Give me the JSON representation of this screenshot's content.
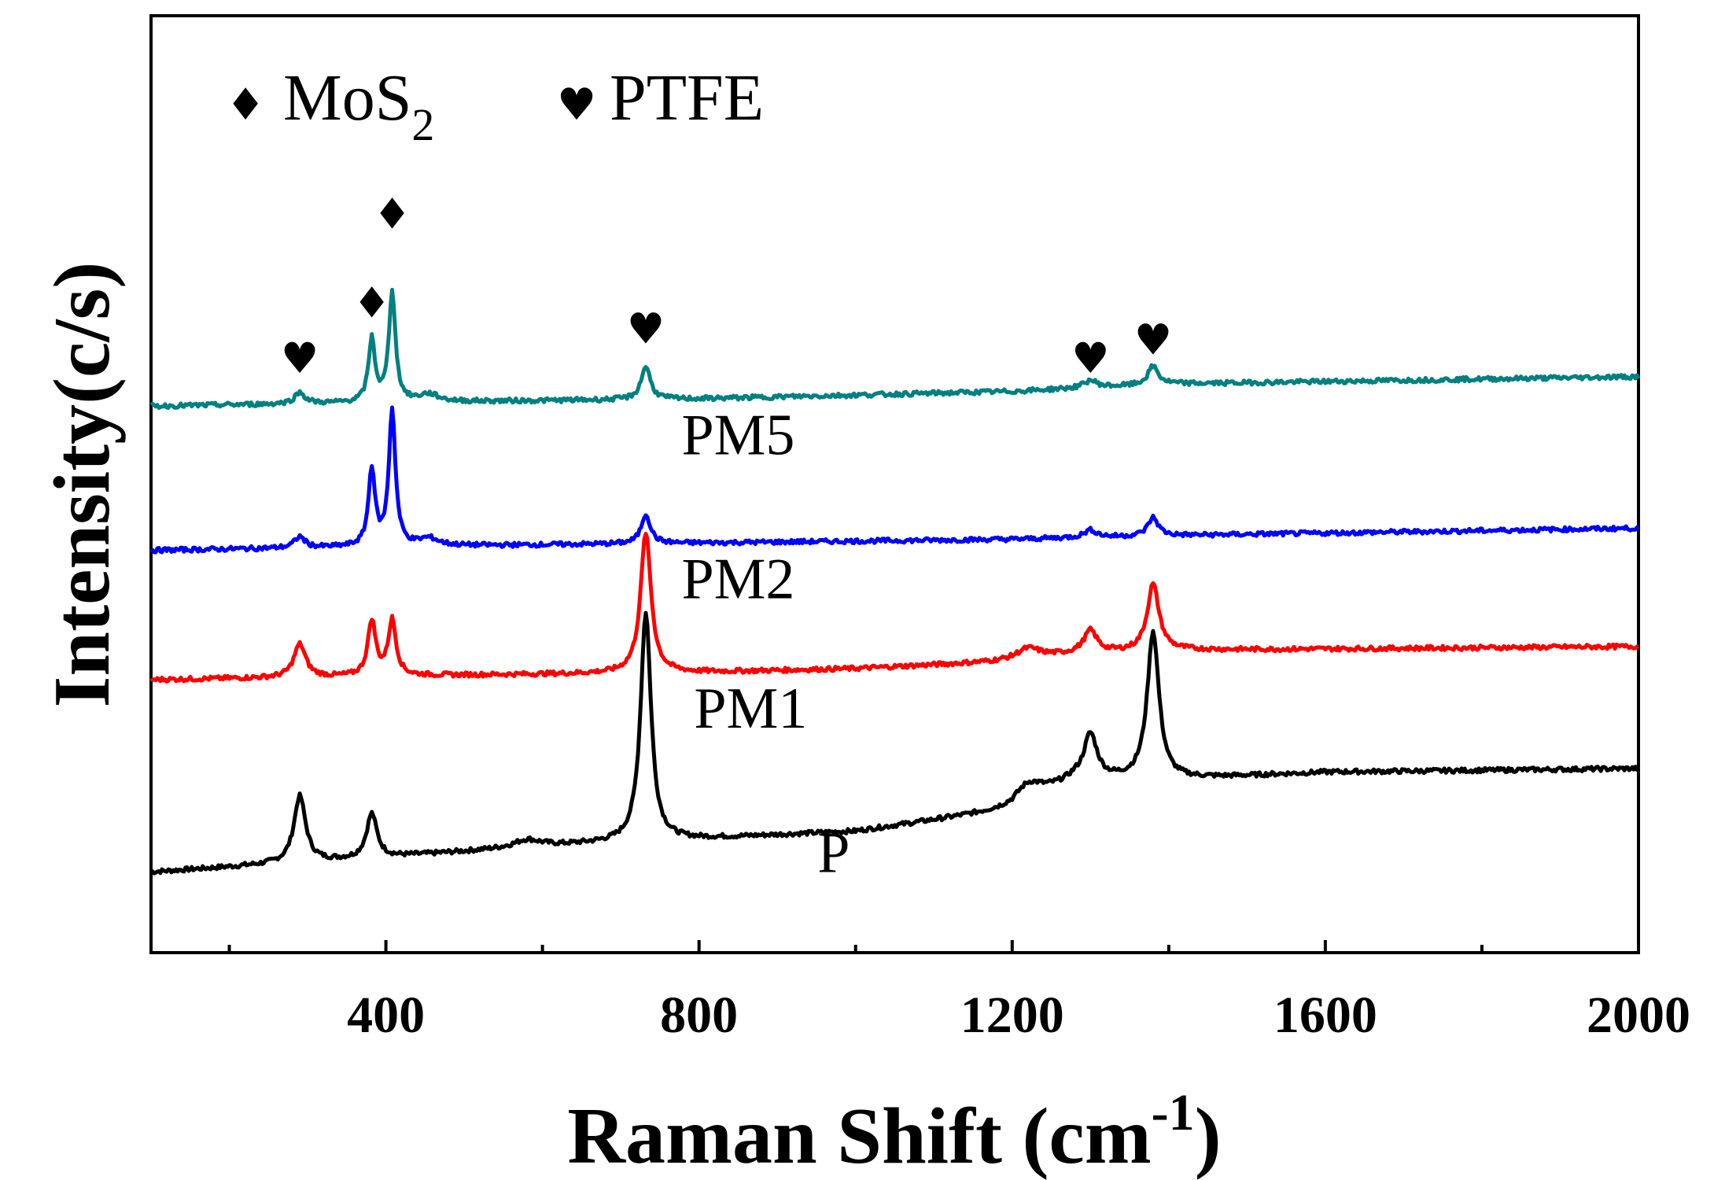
{
  "chart_data": {
    "type": "line",
    "xlabel": "Raman Shift (cm",
    "xlabel_sup": "-1",
    "xlabel_close": ")",
    "ylabel": "Intensity(c/s)",
    "xlim": [
      100,
      2000
    ],
    "x_ticks": [
      "400",
      "800",
      "1200",
      "1600",
      "2000"
    ],
    "x_tick_values": [
      400,
      800,
      1200,
      1600,
      2000
    ],
    "y_ticks_shown": false,
    "legend": {
      "placement": "top-left",
      "items": [
        {
          "symbol": "diamond-icon",
          "label": "MoS",
          "sub": "2"
        },
        {
          "symbol": "heart-icon",
          "label": "PTFE"
        }
      ]
    },
    "series": [
      {
        "name": "P",
        "color": "#000000",
        "baseline": [
          [
            100,
            0.05
          ],
          [
            400,
            0.09
          ],
          [
            600,
            0.12
          ],
          [
            800,
            0.14
          ],
          [
            1000,
            0.16
          ],
          [
            1200,
            0.22
          ],
          [
            1280,
            0.3
          ],
          [
            1400,
            0.3
          ],
          [
            1600,
            0.32
          ],
          [
            2000,
            0.33
          ]
        ],
        "peaks": [
          [
            290,
            0.18,
            9
          ],
          [
            382,
            0.12,
            8
          ],
          [
            580,
            0.02,
            20
          ],
          [
            732,
            0.62,
            8
          ],
          [
            1220,
            0.05,
            22
          ],
          [
            1300,
            0.12,
            10
          ],
          [
            1380,
            0.4,
            9
          ]
        ]
      },
      {
        "name": "PM1",
        "color": "#ff0000",
        "baseline": [
          [
            100,
            0.57
          ],
          [
            400,
            0.58
          ],
          [
            800,
            0.59
          ],
          [
            1000,
            0.6
          ],
          [
            1200,
            0.62
          ],
          [
            1280,
            0.64
          ],
          [
            1400,
            0.65
          ],
          [
            2000,
            0.66
          ]
        ],
        "peaks": [
          [
            290,
            0.09,
            9
          ],
          [
            382,
            0.15,
            6
          ],
          [
            408,
            0.15,
            6
          ],
          [
            732,
            0.38,
            8
          ],
          [
            1220,
            0.03,
            20
          ],
          [
            1300,
            0.06,
            10
          ],
          [
            1380,
            0.18,
            9
          ]
        ]
      },
      {
        "name": "PM2",
        "color": "#0000ff",
        "baseline": [
          [
            100,
            0.92
          ],
          [
            400,
            0.93
          ],
          [
            800,
            0.94
          ],
          [
            1200,
            0.95
          ],
          [
            1400,
            0.96
          ],
          [
            2000,
            0.98
          ]
        ],
        "peaks": [
          [
            290,
            0.03,
            8
          ],
          [
            382,
            0.21,
            5
          ],
          [
            408,
            0.37,
            5
          ],
          [
            455,
            0.02,
            15
          ],
          [
            732,
            0.08,
            7
          ],
          [
            1300,
            0.02,
            10
          ],
          [
            1380,
            0.05,
            8
          ]
        ]
      },
      {
        "name": "PM5",
        "color": "#008080",
        "baseline": [
          [
            100,
            1.31
          ],
          [
            400,
            1.32
          ],
          [
            800,
            1.33
          ],
          [
            1200,
            1.35
          ],
          [
            1400,
            1.37
          ],
          [
            2000,
            1.39
          ]
        ],
        "peaks": [
          [
            290,
            0.03,
            8
          ],
          [
            382,
            0.17,
            5
          ],
          [
            408,
            0.3,
            5
          ],
          [
            455,
            0.02,
            15
          ],
          [
            732,
            0.09,
            7
          ],
          [
            1300,
            0.02,
            10
          ],
          [
            1380,
            0.05,
            8
          ]
        ]
      }
    ],
    "annotations": [
      {
        "symbol": "heart-icon",
        "x": 290,
        "y": 1.4
      },
      {
        "symbol": "diamond-icon",
        "x": 382,
        "y": 1.55
      },
      {
        "symbol": "diamond-icon",
        "x": 408,
        "y": 1.79
      },
      {
        "symbol": "heart-icon",
        "x": 732,
        "y": 1.48
      },
      {
        "symbol": "heart-icon",
        "x": 1300,
        "y": 1.4
      },
      {
        "symbol": "heart-icon",
        "x": 1380,
        "y": 1.45
      }
    ],
    "series_labels": [
      {
        "text": "PM5",
        "x": 850,
        "y": 1.18
      },
      {
        "text": "PM2",
        "x": 850,
        "y": 0.79
      },
      {
        "text": "PM1",
        "x": 866,
        "y": 0.44
      },
      {
        "text": "P",
        "x": 972,
        "y": 0.05
      }
    ]
  }
}
